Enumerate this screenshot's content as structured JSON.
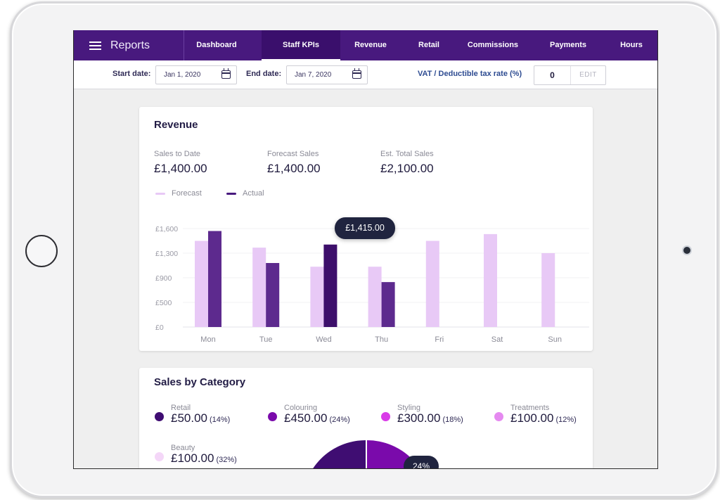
{
  "app": {
    "title": "Reports"
  },
  "nav": {
    "tabs": [
      {
        "label": "Dashboard",
        "active": false
      },
      {
        "label": "Staff KPIs",
        "active": true
      },
      {
        "label": "Revenue",
        "active": false
      },
      {
        "label": "Retail",
        "active": false
      },
      {
        "label": "Commissions",
        "active": false
      },
      {
        "label": "Payments",
        "active": false
      },
      {
        "label": "Hours",
        "active": false
      }
    ]
  },
  "filters": {
    "start_label": "Start date:",
    "start_value": "Jan 1, 2020",
    "end_label": "End date:",
    "end_value": "Jan 7, 2020",
    "vat_label": "VAT / Deductible tax rate (%)",
    "vat_value": "0",
    "vat_edit": "EDIT"
  },
  "revenue": {
    "title": "Revenue",
    "stats": [
      {
        "label": "Sales to Date",
        "value": "£1,400.00"
      },
      {
        "label": "Forecast Sales",
        "value": "£1,400.00"
      },
      {
        "label": "Est. Total Sales",
        "value": "£2,100.00"
      }
    ],
    "legend": [
      {
        "label": "Forecast",
        "color": "#e8c9f6"
      },
      {
        "label": "Actual",
        "color": "#48197e"
      }
    ],
    "tooltip": "£1,415.00"
  },
  "chart_data": {
    "type": "bar",
    "categories": [
      "Mon",
      "Tue",
      "Wed",
      "Thu",
      "Fri",
      "Sat",
      "Sun"
    ],
    "y_ticks": [
      "£0",
      "£500",
      "£900",
      "£1,300",
      "£1,600"
    ],
    "series": [
      {
        "name": "Forecast",
        "color": "#e8c9f6",
        "values": [
          1400,
          1290,
          980,
          980,
          1400,
          1510,
          1200
        ]
      },
      {
        "name": "Actual",
        "color": "#5d2a8e",
        "values": [
          1560,
          1040,
          1340,
          730,
          null,
          null,
          null
        ]
      }
    ],
    "highlight_bar_color": "#3d0f6b",
    "ylim": [
      0,
      1600
    ],
    "grid": true,
    "legend_position": "top-left"
  },
  "categories": {
    "title": "Sales by Category",
    "items": [
      {
        "label": "Retail",
        "value": "£50.00",
        "pct": "(14%)",
        "color": "#3f0d72"
      },
      {
        "label": "Colouring",
        "value": "£450.00",
        "pct": "(24%)",
        "color": "#7a0aab"
      },
      {
        "label": "Styling",
        "value": "£300.00",
        "pct": "(18%)",
        "color": "#d93be8"
      },
      {
        "label": "Treatments",
        "value": "£100.00",
        "pct": "(12%)",
        "color": "#e58af0"
      },
      {
        "label": "Beauty",
        "value": "£100.00",
        "pct": "(32%)",
        "color": "#f4d7f8"
      }
    ],
    "pie_label": "24%"
  }
}
